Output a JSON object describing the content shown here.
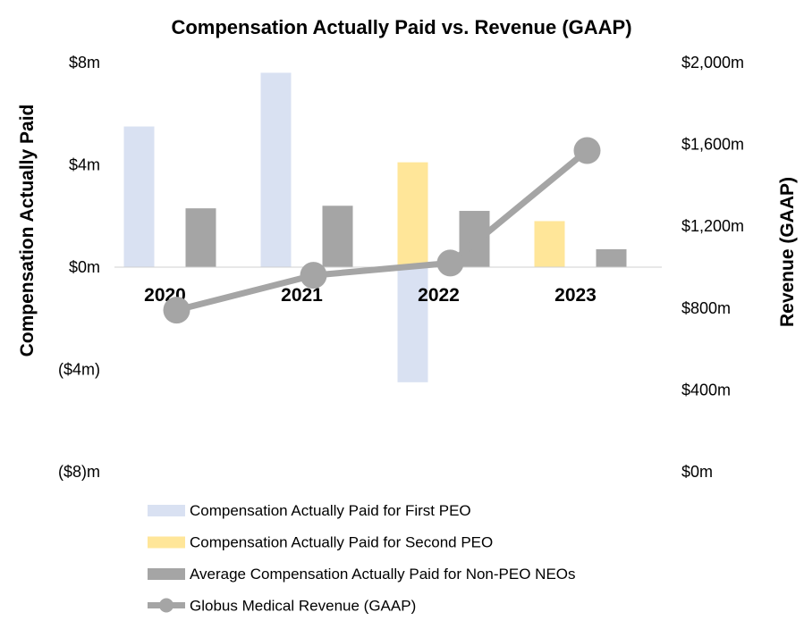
{
  "chart_data": {
    "type": "bar",
    "title": "Compensation Actually Paid vs. Revenue (GAAP)",
    "categories": [
      "2020",
      "2021",
      "2022",
      "2023"
    ],
    "ylabel": "Compensation Actually Paid",
    "y2label": "Revenue (GAAP)",
    "ylim": [
      -8,
      8
    ],
    "y2lim": [
      0,
      2000
    ],
    "y_ticks": [
      {
        "value": 8,
        "label": "$8m"
      },
      {
        "value": 4,
        "label": "$4m"
      },
      {
        "value": 0,
        "label": "$0m"
      },
      {
        "value": -4,
        "label": "($4m)"
      },
      {
        "value": -8,
        "label": "($8)m"
      }
    ],
    "y2_ticks": [
      {
        "value": 2000,
        "label": "$2,000m"
      },
      {
        "value": 1600,
        "label": "$1,600m"
      },
      {
        "value": 1200,
        "label": "$1,200m"
      },
      {
        "value": 800,
        "label": "$800m"
      },
      {
        "value": 400,
        "label": "$400m"
      },
      {
        "value": 0,
        "label": "$0m"
      }
    ],
    "series": [
      {
        "name": "Compensation Actually Paid for First PEO",
        "type": "bar",
        "axis": "left",
        "color": "#d9e1f2",
        "values": [
          5.5,
          7.6,
          -4.5,
          null
        ]
      },
      {
        "name": "Compensation Actually Paid for Second PEO",
        "type": "bar",
        "axis": "left",
        "color": "#ffe699",
        "values": [
          null,
          null,
          4.1,
          1.8
        ]
      },
      {
        "name": "Average Compensation Actually Paid for Non-PEO NEOs",
        "type": "bar",
        "axis": "left",
        "color": "#a5a5a5",
        "values": [
          2.3,
          2.4,
          2.2,
          0.7
        ]
      },
      {
        "name": "Globus Medical Revenue (GAAP)",
        "type": "line",
        "axis": "right",
        "color": "#a5a5a5",
        "values": [
          790,
          960,
          1020,
          1570
        ]
      }
    ],
    "legend_position": "bottom"
  }
}
